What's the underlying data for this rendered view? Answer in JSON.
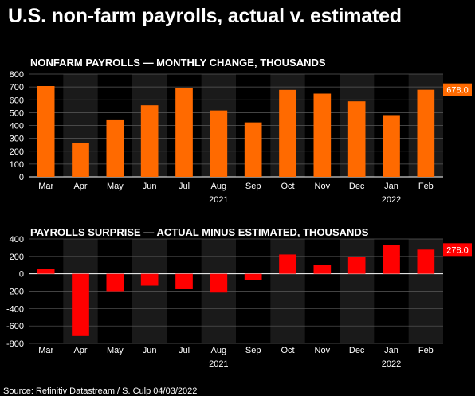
{
  "title": "U.S. non-farm payrolls, actual v. estimated",
  "source": "Source: Refinitiv Datastream / S. Culp 04/03/2022",
  "colors": {
    "background": "#000000",
    "panel_band": "#1a1a1a",
    "grid": "#5a5a5a",
    "payrolls_bar": "#ff6a00",
    "surprise_bar": "#ff0000"
  },
  "chart_data": [
    {
      "type": "bar",
      "title": "NONFARM PAYROLLS — MONTHLY CHANGE, THOUSANDS",
      "categories": [
        "Mar",
        "Apr",
        "May",
        "Jun",
        "Jul",
        "Aug",
        "Sep",
        "Oct",
        "Nov",
        "Dec",
        "Jan",
        "Feb"
      ],
      "year_labels": [
        {
          "label": "2021",
          "category": "Aug"
        },
        {
          "label": "2022",
          "category": "Jan"
        }
      ],
      "values": [
        707,
        263,
        447,
        557,
        689,
        517,
        424,
        677,
        648,
        588,
        481,
        678
      ],
      "ylim": [
        0,
        800
      ],
      "yticks": [
        0,
        100,
        200,
        300,
        400,
        500,
        600,
        700,
        800
      ],
      "last_value_label": "678.0",
      "grid": true,
      "xlabel": "",
      "ylabel": ""
    },
    {
      "type": "bar",
      "title": "PAYROLLS SURPRISE — ACTUAL MINUS ESTIMATED, THOUSANDS",
      "categories": [
        "Mar",
        "Apr",
        "May",
        "Jun",
        "Jul",
        "Aug",
        "Sep",
        "Oct",
        "Nov",
        "Dec",
        "Jan",
        "Feb"
      ],
      "year_labels": [
        {
          "label": "2021",
          "category": "Aug"
        },
        {
          "label": "2022",
          "category": "Jan"
        }
      ],
      "values": [
        60,
        -716,
        -200,
        -136,
        -177,
        -216,
        -74,
        222,
        98,
        193,
        327,
        278
      ],
      "ylim": [
        -800,
        400
      ],
      "yticks": [
        -800,
        -600,
        -400,
        -200,
        0,
        200,
        400
      ],
      "last_value_label": "278.0",
      "grid": true,
      "xlabel": "",
      "ylabel": ""
    }
  ]
}
